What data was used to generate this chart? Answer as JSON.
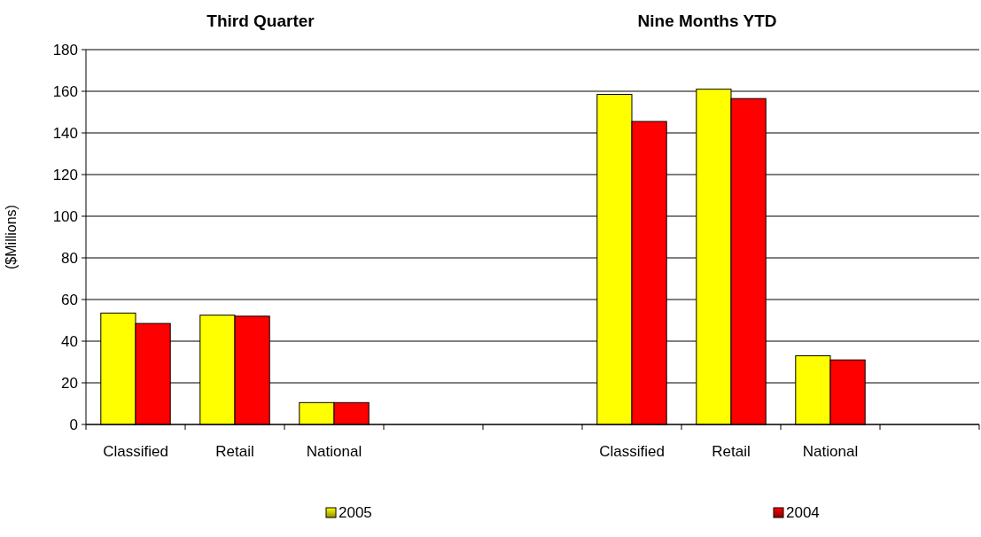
{
  "chart_data": {
    "type": "bar",
    "ylabel": "($Millions)",
    "annotations": [
      "Third Quarter",
      "Nine Months YTD"
    ],
    "categories": [
      "Classified",
      "Retail",
      "National",
      null,
      null,
      "Classified",
      "Retail",
      "National",
      null
    ],
    "series": [
      {
        "name": "2005",
        "color": "#ffff00",
        "values": [
          53.5,
          52.5,
          10.5,
          null,
          null,
          158.5,
          161,
          33,
          null
        ]
      },
      {
        "name": "2004",
        "color": "#ff0000",
        "values": [
          48.5,
          52,
          10.5,
          null,
          null,
          145.5,
          156.5,
          31,
          null
        ]
      }
    ],
    "ylim": [
      0,
      180
    ],
    "yticks": [
      0,
      20,
      40,
      60,
      80,
      100,
      120,
      140,
      160,
      180
    ],
    "grid": "y",
    "legend": "bottom"
  }
}
